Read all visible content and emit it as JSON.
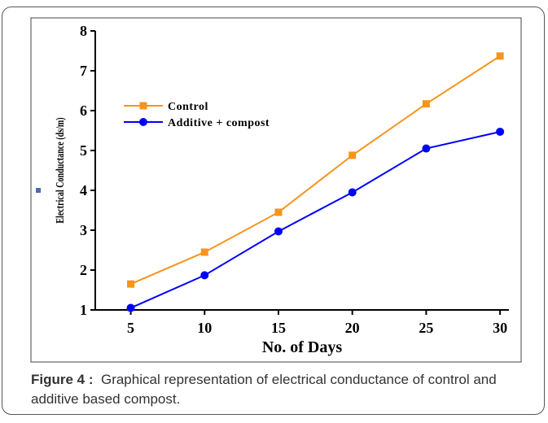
{
  "chart_data": {
    "type": "line",
    "xlabel": "No. of Days",
    "ylabel": "Electrical Conductance (ds/m)",
    "x": [
      5,
      10,
      15,
      20,
      25,
      30
    ],
    "xlim": [
      2.6,
      30.6
    ],
    "xticks": [
      5,
      10,
      15,
      20,
      25,
      30
    ],
    "ylim": [
      1,
      8
    ],
    "yticks": [
      1,
      2,
      3,
      4,
      5,
      6,
      7,
      8
    ],
    "legend": "upper left",
    "series": [
      {
        "name": "Control",
        "color": "#f7941d",
        "marker": "square",
        "values": [
          1.65,
          2.45,
          3.45,
          4.88,
          6.17,
          7.37
        ]
      },
      {
        "name": "Additive + compost",
        "color": "#0000ff",
        "marker": "circle",
        "values": [
          1.05,
          1.87,
          2.97,
          3.95,
          5.05,
          5.47
        ]
      }
    ]
  },
  "caption": {
    "label": "Figure 4 :",
    "text": "Graphical representation of electrical conductance of control and additive based compost."
  }
}
